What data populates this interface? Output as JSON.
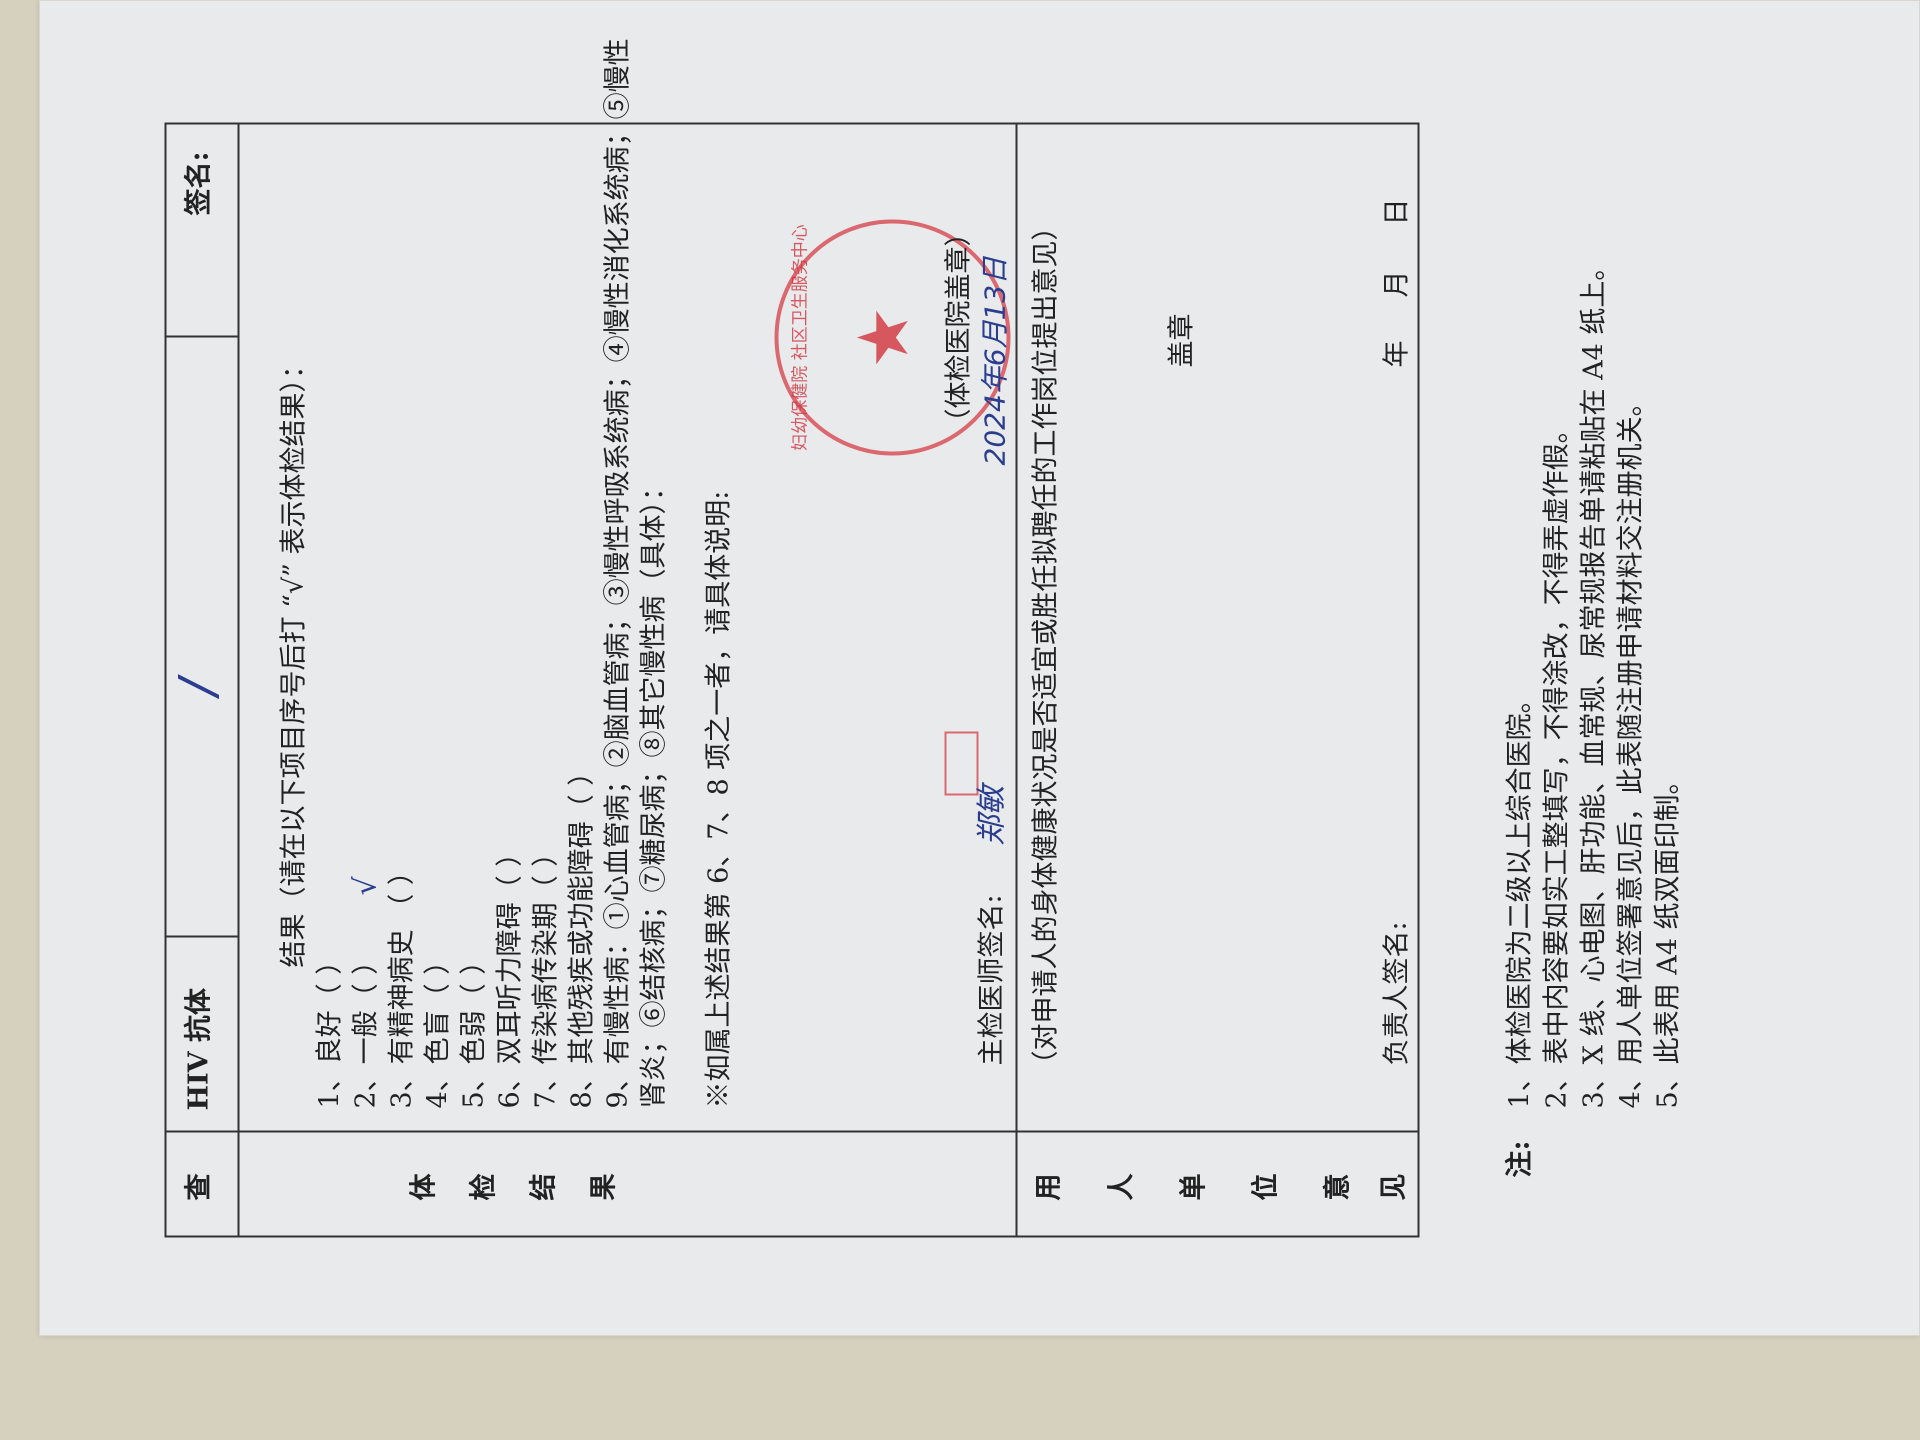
{
  "exam_header": {
    "row_label": "查",
    "item": "HIV 抗体",
    "result_mark": "/",
    "signature_label": "签名:"
  },
  "exam_results": {
    "section_label": [
      "体",
      "检",
      "结",
      "果"
    ],
    "instruction": "结果（请在以下项目序号后打 “√” 表示体检结果）：",
    "items": [
      {
        "label": "1、良好（ ）",
        "checked": false
      },
      {
        "label": "2、一般（ ）",
        "checked": true
      },
      {
        "label": "3、有精神病史 （ ）",
        "checked": false
      },
      {
        "label": "4、色盲（ ）",
        "checked": false
      },
      {
        "label": "5、色弱（ ）",
        "checked": false
      },
      {
        "label": "6、双耳听力障碍（ ）",
        "checked": false
      },
      {
        "label": "7、传染病传染期（ ）",
        "checked": false
      },
      {
        "label": "8、其他残疾或功能障碍（ ）",
        "checked": false
      },
      {
        "label": "9、有慢性病：①心血管病；②脑血管病；③慢性呼吸系统病；④慢性消化系统病；⑤慢性",
        "checked": false
      }
    ],
    "item9_continuation": "肾炎；⑥结核病；⑦糖尿病；⑧其它慢性病（具体）：",
    "note": "※如属上述结果第 6、7、8 项之一者，请具体说明:",
    "check_mark": "√",
    "doctor_signature_label": "主检医师签名:",
    "doctor_signature": "郑敏",
    "hospital_stamp_label": "（体检医院盖章）",
    "date_handwritten": "2024年6月13日",
    "stamp_text": "妇幼保健院 社区卫生服务中心"
  },
  "employer_opinion": {
    "section_label": [
      "用",
      "人",
      "单",
      "位",
      "意",
      "见"
    ],
    "instruction": "（对申请人的身体健康状况是否适宜或胜任拟聘任的工作岗位提出意见）",
    "seal_label": "盖章",
    "responsible_signature_label": "负责人签名:",
    "date_year": "年",
    "date_month": "月",
    "date_day": "日"
  },
  "notes": {
    "title": "注:",
    "items": [
      "1、体检医院为二级以上综合医院。",
      "2、表中内容要如实工整填写，不得涂改，不得弄虚作假。",
      "3、X 线、心电图、肝功能、血常规、尿常规报告单请粘贴在 A4 纸上。",
      "4、用人单位签署意见后，此表随注册申请材料交注册机关。",
      "5、此表用 A4 纸双面印制。"
    ]
  }
}
